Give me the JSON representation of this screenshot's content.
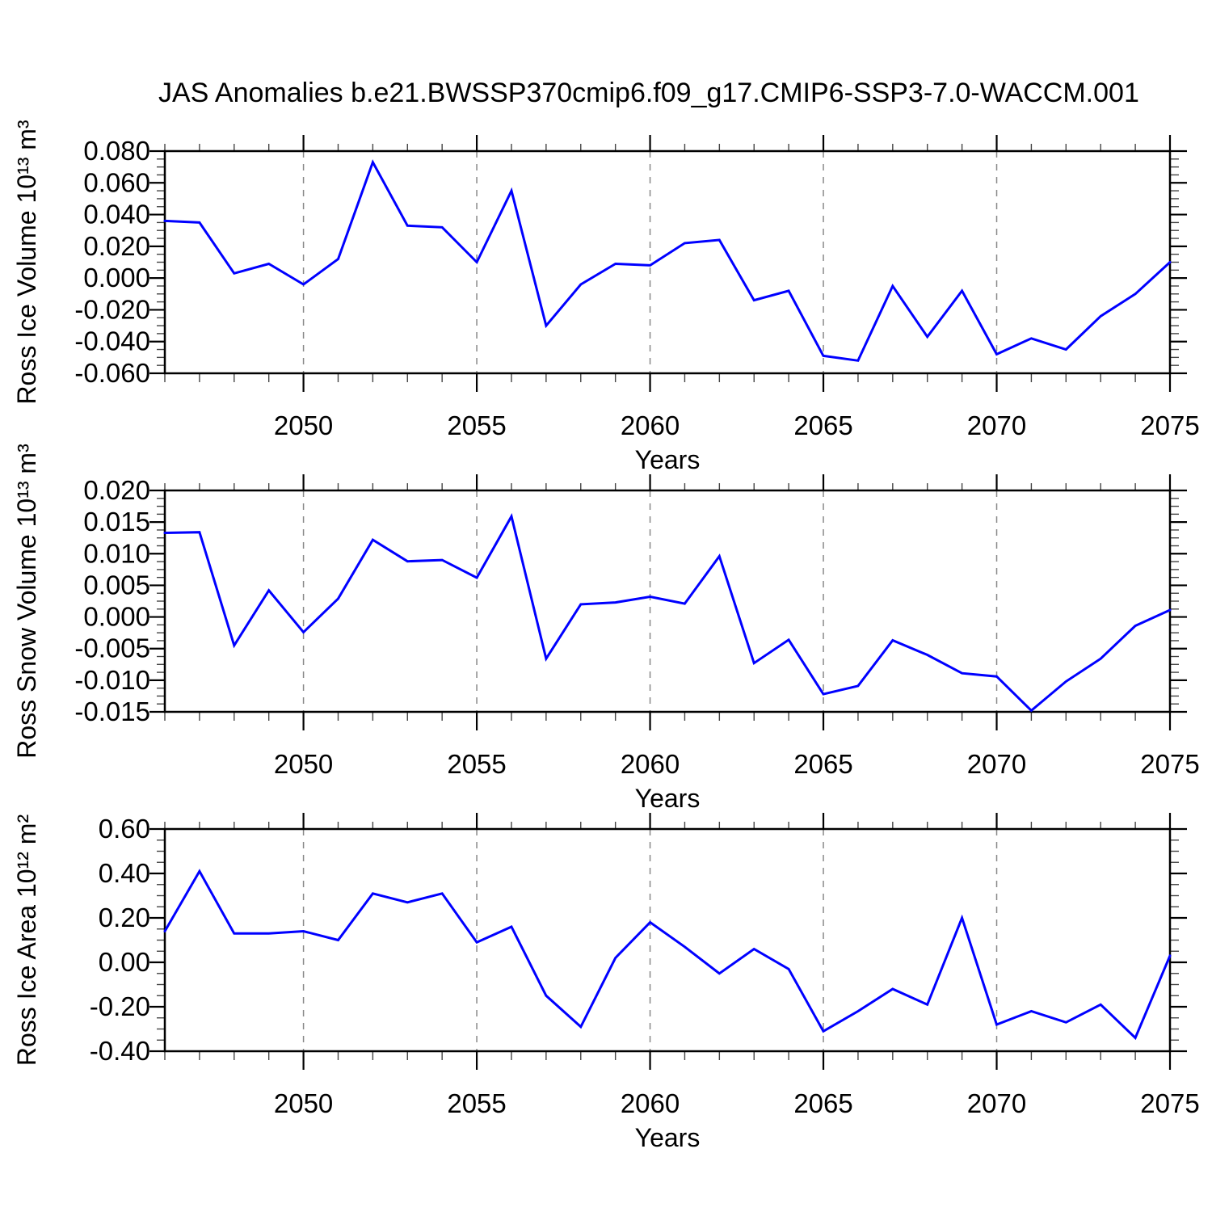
{
  "title": "JAS Anomalies b.e21.BWSSP370cmip6.f09_g17.CMIP6-SSP3-7.0-WACCM.001",
  "colors": {
    "line": "#0000ff",
    "grid": "#888888",
    "frame": "#000000",
    "major_tick": "#000000",
    "minor_tick": "#444444"
  },
  "chart_data": [
    {
      "type": "line",
      "title": "JAS Anomalies b.e21.BWSSP370cmip6.f09_g17.CMIP6-SSP3-7.0-WACCM.001",
      "ylabel": "Ross Ice Volume 10¹³ m³",
      "xlabel": "Years",
      "line_color": "#0000ff",
      "x": [
        2046,
        2047,
        2048,
        2049,
        2050,
        2051,
        2052,
        2053,
        2054,
        2055,
        2056,
        2057,
        2058,
        2059,
        2060,
        2061,
        2062,
        2063,
        2064,
        2065,
        2066,
        2067,
        2068,
        2069,
        2070,
        2071,
        2072,
        2073,
        2074,
        2075
      ],
      "values": [
        0.036,
        0.035,
        0.003,
        0.009,
        -0.004,
        0.012,
        0.073,
        0.033,
        0.032,
        0.01,
        0.055,
        -0.03,
        -0.004,
        0.009,
        0.008,
        0.022,
        0.024,
        -0.014,
        -0.008,
        -0.049,
        -0.052,
        -0.005,
        -0.037,
        -0.008,
        -0.048,
        -0.038,
        -0.045,
        -0.024,
        -0.01,
        0.01
      ],
      "xlim": [
        2046,
        2075
      ],
      "ylim": [
        -0.06,
        0.08
      ],
      "xtick_values": [
        2050,
        2055,
        2060,
        2065,
        2070,
        2075
      ],
      "xtick_labels": [
        "2050",
        "2055",
        "2060",
        "2065",
        "2070",
        "2075"
      ],
      "x_minor_step": 1,
      "ytick_values": [
        0.08,
        0.06,
        0.04,
        0.02,
        0.0,
        -0.02,
        -0.04,
        -0.06
      ],
      "ytick_labels": [
        "0.080",
        "0.060",
        "0.040",
        "0.020",
        "0.000",
        "-0.020",
        "-0.040",
        "-0.060"
      ],
      "y_minor_step": 0.005,
      "grid_x": [
        2050,
        2055,
        2060,
        2065,
        2070
      ],
      "grid_on": "vertical-dashed-only",
      "legend": "none"
    },
    {
      "type": "line",
      "ylabel": "Ross Snow Volume 10¹³ m³",
      "xlabel": "Years",
      "line_color": "#0000ff",
      "x": [
        2046,
        2047,
        2048,
        2049,
        2050,
        2051,
        2052,
        2053,
        2054,
        2055,
        2056,
        2057,
        2058,
        2059,
        2060,
        2061,
        2062,
        2063,
        2064,
        2065,
        2066,
        2067,
        2068,
        2069,
        2070,
        2071,
        2072,
        2073,
        2074,
        2075
      ],
      "values": [
        0.0133,
        0.0134,
        -0.0045,
        0.0042,
        -0.0024,
        0.0029,
        0.0122,
        0.0088,
        0.009,
        0.0062,
        0.0159,
        -0.0066,
        0.002,
        0.0023,
        0.0032,
        0.0021,
        0.0096,
        -0.0073,
        -0.0036,
        -0.0122,
        -0.0109,
        -0.0037,
        -0.006,
        -0.0089,
        -0.0094,
        -0.0148,
        -0.0102,
        -0.0066,
        -0.0014,
        0.0011
      ],
      "xlim": [
        2046,
        2075
      ],
      "ylim": [
        -0.015,
        0.02
      ],
      "xtick_values": [
        2050,
        2055,
        2060,
        2065,
        2070,
        2075
      ],
      "xtick_labels": [
        "2050",
        "2055",
        "2060",
        "2065",
        "2070",
        "2075"
      ],
      "x_minor_step": 1,
      "ytick_values": [
        0.02,
        0.015,
        0.01,
        0.005,
        0.0,
        -0.005,
        -0.01,
        -0.015
      ],
      "ytick_labels": [
        "0.020",
        "0.015",
        "0.010",
        "0.005",
        "0.000",
        "-0.005",
        "-0.010",
        "-0.015"
      ],
      "y_minor_step": 0.00125,
      "grid_x": [
        2050,
        2055,
        2060,
        2065,
        2070
      ],
      "grid_on": "vertical-dashed-only",
      "legend": "none"
    },
    {
      "type": "line",
      "ylabel": "Ross Ice Area 10¹² m²",
      "xlabel": "Years",
      "line_color": "#0000ff",
      "x": [
        2046,
        2047,
        2048,
        2049,
        2050,
        2051,
        2052,
        2053,
        2054,
        2055,
        2056,
        2057,
        2058,
        2059,
        2060,
        2061,
        2062,
        2063,
        2064,
        2065,
        2066,
        2067,
        2068,
        2069,
        2070,
        2071,
        2072,
        2073,
        2074,
        2075
      ],
      "values": [
        0.14,
        0.41,
        0.13,
        0.13,
        0.14,
        0.1,
        0.31,
        0.27,
        0.31,
        0.09,
        0.16,
        -0.15,
        -0.29,
        0.02,
        0.18,
        0.07,
        -0.05,
        0.06,
        -0.03,
        -0.31,
        -0.22,
        -0.12,
        -0.19,
        0.2,
        -0.28,
        -0.22,
        -0.27,
        -0.19,
        -0.34,
        0.03
      ],
      "xlim": [
        2046,
        2075
      ],
      "ylim": [
        -0.4,
        0.6
      ],
      "xtick_values": [
        2050,
        2055,
        2060,
        2065,
        2070,
        2075
      ],
      "xtick_labels": [
        "2050",
        "2055",
        "2060",
        "2065",
        "2070",
        "2075"
      ],
      "x_minor_step": 1,
      "ytick_values": [
        0.6,
        0.4,
        0.2,
        0.0,
        -0.2,
        -0.4
      ],
      "ytick_labels": [
        "0.60",
        "0.40",
        "0.20",
        "0.00",
        "-0.20",
        "-0.40"
      ],
      "y_minor_step": 0.05,
      "grid_x": [
        2050,
        2055,
        2060,
        2065,
        2070
      ],
      "grid_on": "vertical-dashed-only",
      "legend": "none"
    }
  ]
}
